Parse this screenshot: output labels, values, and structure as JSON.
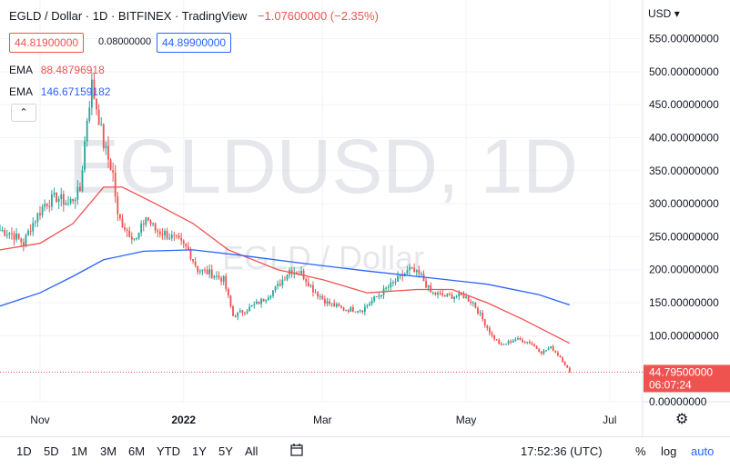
{
  "header": {
    "title": "EGLD / Dollar · 1D · BITFINEX · TradingView",
    "change": "−1.07600000 (−2.35%)"
  },
  "quote": {
    "bid": "44.81900000",
    "spread": "0.08000000",
    "ask": "44.89900000"
  },
  "indicators": [
    {
      "name": "EMA",
      "value": "88.48796918",
      "color": "#ef5350"
    },
    {
      "name": "EMA",
      "value": "146.67159182",
      "color": "#2962ff"
    }
  ],
  "collapse_glyph": "⌃",
  "currency": "USD",
  "currency_arrow": "▾",
  "watermark": {
    "symbol": "EGLDUSD, 1D",
    "name": "EGLD / Dollar"
  },
  "last_price": {
    "value": "44.79500000",
    "countdown": "06:07:24"
  },
  "toolbar": {
    "ranges": [
      "1D",
      "5D",
      "1M",
      "3M",
      "6M",
      "YTD",
      "1Y",
      "5Y",
      "All"
    ],
    "clock": "17:52:36 (UTC)",
    "percent": "%",
    "log": "log",
    "auto": "auto"
  },
  "colors": {
    "up": "#26a69a",
    "down": "#ef5350",
    "ema_fast": "#ef5350",
    "ema_slow": "#2962ff",
    "grid": "#f0f3fa",
    "text": "#131722"
  },
  "chart_data": {
    "type": "candlestick",
    "title": "EGLD / Dollar",
    "x_ticks": [
      "Nov",
      "2022",
      "Mar",
      "May",
      "Jul"
    ],
    "y_ticks": [
      "550.00000000",
      "500.00000000",
      "450.00000000",
      "400.00000000",
      "350.00000000",
      "300.00000000",
      "250.00000000",
      "200.00000000",
      "150.00000000",
      "100.00000000",
      "0.00000000"
    ],
    "ylim": [
      0,
      570
    ],
    "x_range": [
      "2021-10-15",
      "2022-07-15"
    ],
    "last_date": "2022-06-14",
    "close_keypoints": [
      [
        "2021-10-15",
        260
      ],
      [
        "2021-10-20",
        255
      ],
      [
        "2021-10-25",
        240
      ],
      [
        "2021-10-28",
        265
      ],
      [
        "2021-11-03",
        300
      ],
      [
        "2021-11-08",
        310
      ],
      [
        "2021-11-13",
        300
      ],
      [
        "2021-11-18",
        320
      ],
      [
        "2021-11-21",
        430
      ],
      [
        "2021-11-23",
        480
      ],
      [
        "2021-11-26",
        430
      ],
      [
        "2021-11-28",
        390
      ],
      [
        "2021-12-02",
        345
      ],
      [
        "2021-12-04",
        280
      ],
      [
        "2021-12-08",
        260
      ],
      [
        "2021-12-12",
        245
      ],
      [
        "2021-12-16",
        280
      ],
      [
        "2021-12-20",
        260
      ],
      [
        "2021-12-24",
        255
      ],
      [
        "2021-12-29",
        245
      ],
      [
        "2022-01-03",
        230
      ],
      [
        "2022-01-07",
        200
      ],
      [
        "2022-01-12",
        195
      ],
      [
        "2022-01-18",
        185
      ],
      [
        "2022-01-22",
        130
      ],
      [
        "2022-01-28",
        140
      ],
      [
        "2022-02-04",
        155
      ],
      [
        "2022-02-10",
        175
      ],
      [
        "2022-02-15",
        200
      ],
      [
        "2022-02-20",
        195
      ],
      [
        "2022-02-25",
        170
      ],
      [
        "2022-03-03",
        150
      ],
      [
        "2022-03-10",
        140
      ],
      [
        "2022-03-18",
        140
      ],
      [
        "2022-03-26",
        165
      ],
      [
        "2022-04-02",
        185
      ],
      [
        "2022-04-07",
        200
      ],
      [
        "2022-04-12",
        190
      ],
      [
        "2022-04-16",
        165
      ],
      [
        "2022-04-22",
        160
      ],
      [
        "2022-04-30",
        160
      ],
      [
        "2022-05-04",
        150
      ],
      [
        "2022-05-08",
        125
      ],
      [
        "2022-05-12",
        100
      ],
      [
        "2022-05-16",
        85
      ],
      [
        "2022-05-22",
        95
      ],
      [
        "2022-05-28",
        90
      ],
      [
        "2022-06-02",
        75
      ],
      [
        "2022-06-06",
        82
      ],
      [
        "2022-06-10",
        68
      ],
      [
        "2022-06-14",
        45
      ]
    ],
    "series": [
      {
        "name": "EMA",
        "role": "ema_fast",
        "points": [
          [
            "2021-10-15",
            230
          ],
          [
            "2021-11-01",
            240
          ],
          [
            "2021-11-15",
            270
          ],
          [
            "2021-11-28",
            325
          ],
          [
            "2021-12-06",
            325
          ],
          [
            "2021-12-20",
            300
          ],
          [
            "2022-01-05",
            270
          ],
          [
            "2022-01-20",
            230
          ],
          [
            "2022-02-10",
            200
          ],
          [
            "2022-03-01",
            185
          ],
          [
            "2022-03-20",
            165
          ],
          [
            "2022-04-10",
            170
          ],
          [
            "2022-04-25",
            170
          ],
          [
            "2022-05-10",
            150
          ],
          [
            "2022-05-25",
            125
          ],
          [
            "2022-06-14",
            88.49
          ]
        ]
      },
      {
        "name": "EMA",
        "role": "ema_slow",
        "points": [
          [
            "2021-10-15",
            145
          ],
          [
            "2021-11-01",
            165
          ],
          [
            "2021-11-15",
            190
          ],
          [
            "2021-11-28",
            215
          ],
          [
            "2021-12-15",
            228
          ],
          [
            "2022-01-05",
            230
          ],
          [
            "2022-01-25",
            222
          ],
          [
            "2022-02-20",
            210
          ],
          [
            "2022-03-20",
            198
          ],
          [
            "2022-04-15",
            188
          ],
          [
            "2022-05-10",
            178
          ],
          [
            "2022-06-01",
            162
          ],
          [
            "2022-06-14",
            146.67
          ]
        ]
      }
    ]
  }
}
